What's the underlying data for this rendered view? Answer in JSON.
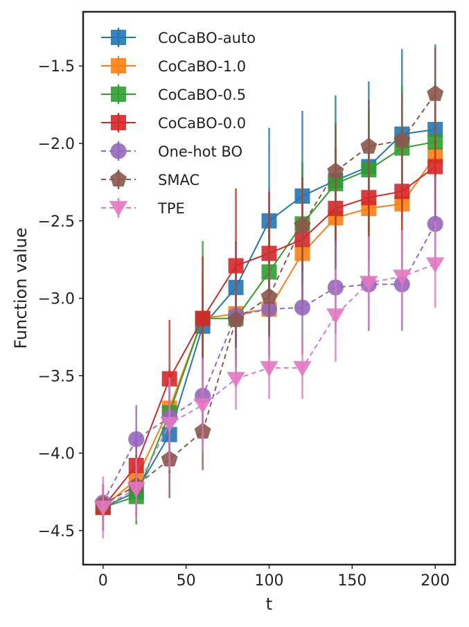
{
  "chart_data": {
    "type": "line",
    "xlabel": "t",
    "ylabel": "Function value",
    "xlim": [
      -12,
      212
    ],
    "ylim": [
      -4.72,
      -1.15
    ],
    "x_ticks": [
      0,
      50,
      100,
      150,
      200
    ],
    "y_ticks": [
      -4.5,
      -4.0,
      -3.5,
      -3.0,
      -2.5,
      -2.0,
      -1.5
    ],
    "x_tick_labels": [
      "0",
      "50",
      "100",
      "150",
      "200"
    ],
    "y_tick_labels": [
      "-4.5",
      "-4.0",
      "-3.5",
      "-3.0",
      "-2.5",
      "-2.0",
      "-1.5"
    ],
    "grid": false,
    "legend_position": "top-left",
    "x": [
      0,
      20,
      40,
      60,
      80,
      100,
      120,
      140,
      160,
      180,
      200
    ],
    "series": [
      {
        "name": "CoCaBO-auto",
        "color": "#1f77b4",
        "linestyle": "solid",
        "marker": "square",
        "values": [
          -4.35,
          -4.25,
          -3.88,
          -3.18,
          -2.93,
          -2.5,
          -2.34,
          -2.24,
          -2.15,
          -1.94,
          -1.91
        ],
        "errors": [
          0.15,
          0.15,
          0.25,
          0.25,
          0.3,
          0.6,
          0.55,
          0.55,
          0.55,
          0.55,
          0.55
        ]
      },
      {
        "name": "CoCaBO-1.0",
        "color": "#ff7f0e",
        "linestyle": "solid",
        "marker": "square",
        "values": [
          -4.35,
          -4.17,
          -3.71,
          -3.13,
          -3.1,
          -3.07,
          -2.71,
          -2.48,
          -2.42,
          -2.39,
          -2.08
        ],
        "errors": [
          0.15,
          0.15,
          0.25,
          0.25,
          0.3,
          0.4,
          0.4,
          0.4,
          0.4,
          0.4,
          0.4
        ]
      },
      {
        "name": "CoCaBO-0.5",
        "color": "#2ca02c",
        "linestyle": "solid",
        "marker": "square",
        "values": [
          -4.35,
          -4.28,
          -3.74,
          -3.13,
          -3.13,
          -2.83,
          -2.52,
          -2.26,
          -2.17,
          -2.03,
          -1.99
        ],
        "errors": [
          0.15,
          0.18,
          0.25,
          0.5,
          0.35,
          0.4,
          0.4,
          0.4,
          0.4,
          0.4,
          0.4
        ]
      },
      {
        "name": "CoCaBO-0.0",
        "color": "#d62728",
        "linestyle": "solid",
        "marker": "square",
        "values": [
          -4.35,
          -4.08,
          -3.52,
          -3.13,
          -2.79,
          -2.71,
          -2.62,
          -2.42,
          -2.35,
          -2.31,
          -2.15
        ],
        "errors": [
          0.15,
          0.2,
          0.38,
          0.4,
          0.5,
          0.4,
          0.4,
          0.4,
          0.4,
          0.4,
          0.4
        ]
      },
      {
        "name": "One-hot BO",
        "color": "#9467bd",
        "linestyle": "dashed",
        "marker": "circle",
        "values": [
          -4.32,
          -3.91,
          -3.77,
          -3.63,
          -3.11,
          -3.07,
          -3.06,
          -2.93,
          -2.91,
          -2.91,
          -2.52
        ],
        "errors": [
          0.12,
          0.22,
          0.25,
          0.25,
          0.25,
          0.3,
          0.3,
          0.3,
          0.3,
          0.3,
          0.3
        ]
      },
      {
        "name": "SMAC",
        "color": "#8c564b",
        "linestyle": "dashed",
        "marker": "pentagon",
        "values": [
          -4.33,
          -4.21,
          -4.04,
          -3.86,
          -3.14,
          -2.99,
          -2.53,
          -2.18,
          -2.02,
          -1.98,
          -1.68
        ],
        "errors": [
          0.12,
          0.2,
          0.25,
          0.25,
          0.3,
          0.3,
          0.3,
          0.3,
          0.3,
          0.3,
          0.3
        ]
      },
      {
        "name": "TPE",
        "color": "#e377c2",
        "linestyle": "dashed",
        "marker": "triangle-down",
        "values": [
          -4.35,
          -4.23,
          -3.81,
          -3.69,
          -3.52,
          -3.45,
          -3.45,
          -3.11,
          -2.9,
          -2.86,
          -2.78
        ],
        "errors": [
          0.2,
          0.2,
          0.3,
          0.3,
          0.2,
          0.2,
          0.2,
          0.3,
          0.3,
          0.3,
          0.28
        ]
      }
    ]
  }
}
